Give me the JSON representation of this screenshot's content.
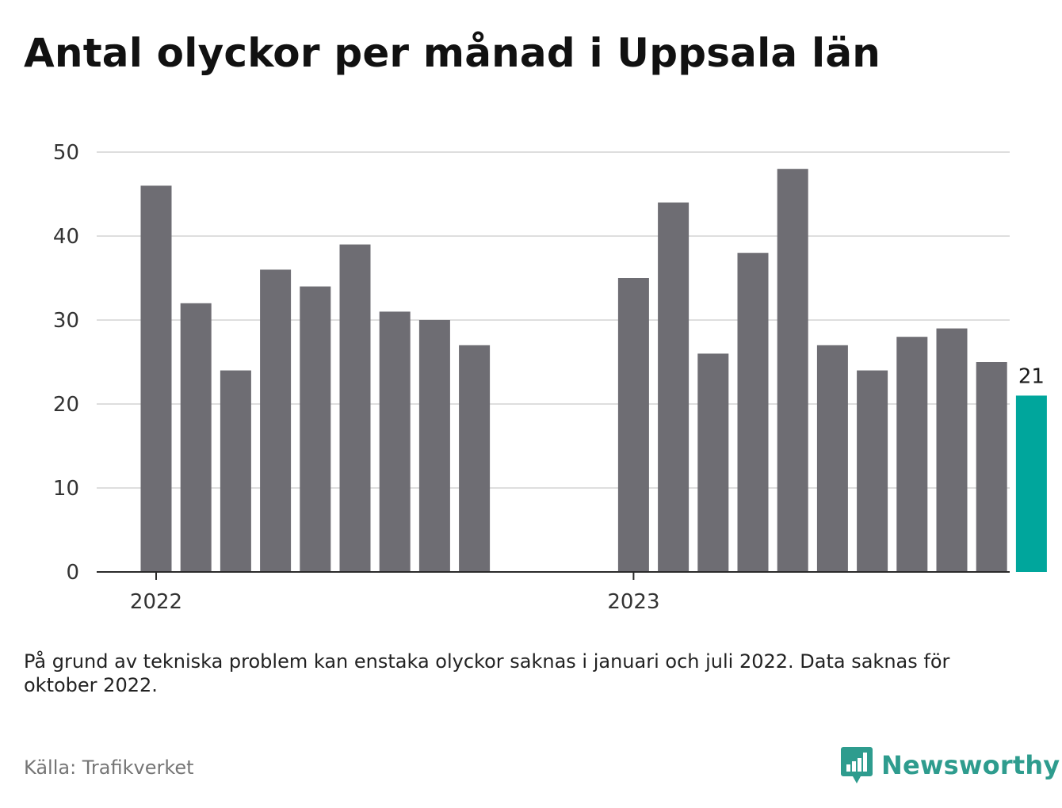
{
  "title": "Antal olyckor per månad i Uppsala län",
  "note": "På grund av tekniska problem kan enstaka olyckor saknas i januari och juli 2022. Data saknas för oktober 2022.",
  "source": "Källa: Trafikverket",
  "brand": {
    "name": "Newsworthy",
    "color": "#2e9c8e"
  },
  "chart_data": {
    "type": "bar",
    "title": "Antal olyckor per månad i Uppsala län",
    "xlabel": "",
    "ylabel": "",
    "ylim": [
      0,
      50
    ],
    "yticks": [
      0,
      10,
      20,
      30,
      40,
      50
    ],
    "grid": true,
    "x_tick_labels": [
      {
        "label": "2022",
        "at": "2022-01"
      },
      {
        "label": "2023",
        "at": "2023-01"
      }
    ],
    "categories": [
      "2022-01",
      "2022-02",
      "2022-03",
      "2022-04",
      "2022-05",
      "2022-06",
      "2022-07",
      "2022-08",
      "2022-09",
      "2022-10",
      "2022-11",
      "2022-12",
      "2023-01",
      "2023-02",
      "2023-03",
      "2023-04",
      "2023-05",
      "2023-06",
      "2023-07",
      "2023-08",
      "2023-09",
      "2023-10",
      "2023-11"
    ],
    "values": [
      46,
      32,
      24,
      36,
      34,
      39,
      31,
      30,
      27,
      null,
      null,
      null,
      35,
      44,
      26,
      38,
      48,
      27,
      24,
      28,
      29,
      25,
      21
    ],
    "bar_color": "#6e6d73",
    "highlight": {
      "category": "2023-11",
      "color": "#00a69c",
      "label": "21"
    }
  }
}
